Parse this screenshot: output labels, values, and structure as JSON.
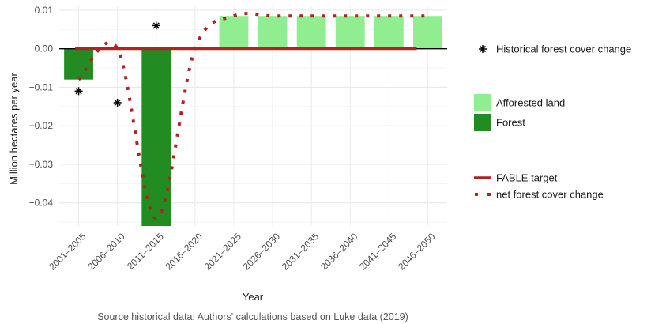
{
  "chart_data": {
    "type": "bar",
    "categories": [
      "2001–2005",
      "2006–2010",
      "2011–2015",
      "2016–2020",
      "2021–2025",
      "2026–2030",
      "2031–2035",
      "2036–2040",
      "2041–2045",
      "2046–2050"
    ],
    "xlabel": "Year",
    "ylabel": "Million hectares per year",
    "ylim": [
      -0.046,
      0.011
    ],
    "yticks": [
      0.01,
      0.0,
      -0.01,
      -0.02,
      -0.03,
      -0.04
    ],
    "ytick_labels": [
      "0.01",
      "0.00",
      "−0.01",
      "−0.02",
      "−0.03",
      "−0.04"
    ],
    "grid": true,
    "caption": "Source historical data: Authors' calculations based on Luke data (2019)",
    "series": [
      {
        "name": "Forest",
        "kind": "bar",
        "color": "#228b22",
        "values": [
          -0.008,
          0,
          -0.046,
          0,
          0,
          0,
          0,
          0,
          0,
          0
        ]
      },
      {
        "name": "Afforested land",
        "kind": "bar",
        "color": "#90ee90",
        "values": [
          0,
          0,
          0,
          0,
          0.0085,
          0.0085,
          0.0085,
          0.0085,
          0.0085,
          0.0085
        ]
      },
      {
        "name": "Historical forest cover change",
        "kind": "point",
        "marker": "asterisk",
        "color": "#000000",
        "values": [
          -0.011,
          -0.014,
          0.006,
          null,
          null,
          null,
          null,
          null,
          null,
          null
        ]
      },
      {
        "name": "FABLE target",
        "kind": "line",
        "color": "#b22222",
        "values": [
          0,
          0,
          0,
          0,
          0,
          0,
          0,
          0,
          0,
          0
        ]
      },
      {
        "name": "net forest cover change",
        "kind": "dotted-line",
        "color": "#b22222",
        "values": [
          -0.008,
          0,
          -0.044,
          0,
          0.0085,
          0.0085,
          0.0085,
          0.0085,
          0.0085,
          0.0085
        ]
      }
    ],
    "legend": {
      "position": "right",
      "groups": [
        [
          "Historical forest cover change"
        ],
        [
          "Afforested land",
          "Forest"
        ],
        [
          "FABLE target",
          "net forest cover change"
        ]
      ]
    }
  }
}
